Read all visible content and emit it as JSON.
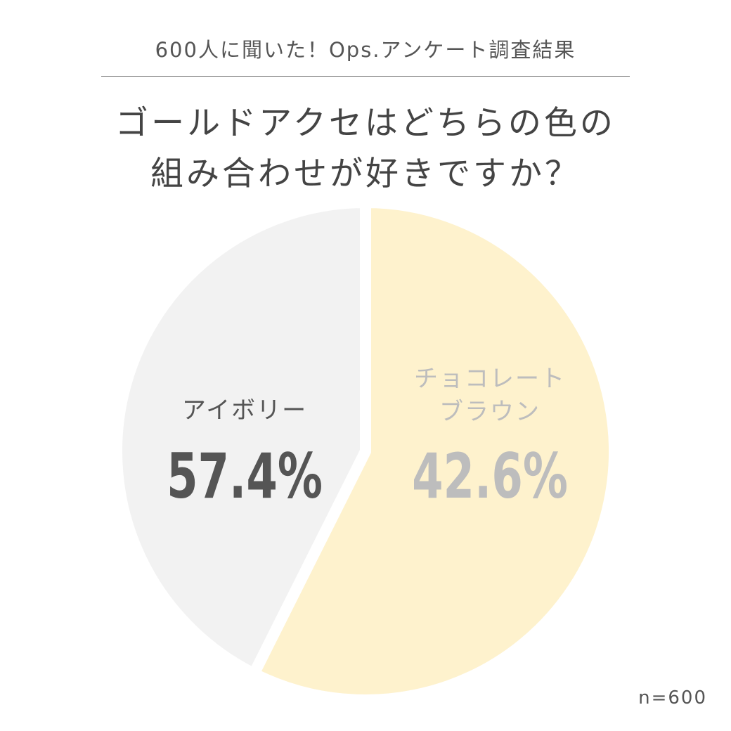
{
  "header": {
    "survey_label": "600人に聞いた！Ops.アンケート調査結果",
    "question_line1": "ゴールドアクセはどちらの色の",
    "question_line2": "組み合わせが好きですか？"
  },
  "footnote": "n=600",
  "chart_data": {
    "type": "pie",
    "title": "",
    "slices": [
      {
        "label_lines": [
          "アイボリー"
        ],
        "value_label": "57.4%",
        "value": 57.4,
        "color": "#fef2cd",
        "text_color": "#555555",
        "value_color": "#555555"
      },
      {
        "label_lines": [
          "チョコレート",
          "ブラウン"
        ],
        "value_label": "42.6%",
        "value": 42.6,
        "color": "#f2f2f2",
        "text_color": "#bdbdbd",
        "value_color": "#bdbdbd"
      }
    ],
    "start_angle_deg": 0,
    "direction": "clockwise",
    "slice_separator_color": "#ffffff"
  }
}
